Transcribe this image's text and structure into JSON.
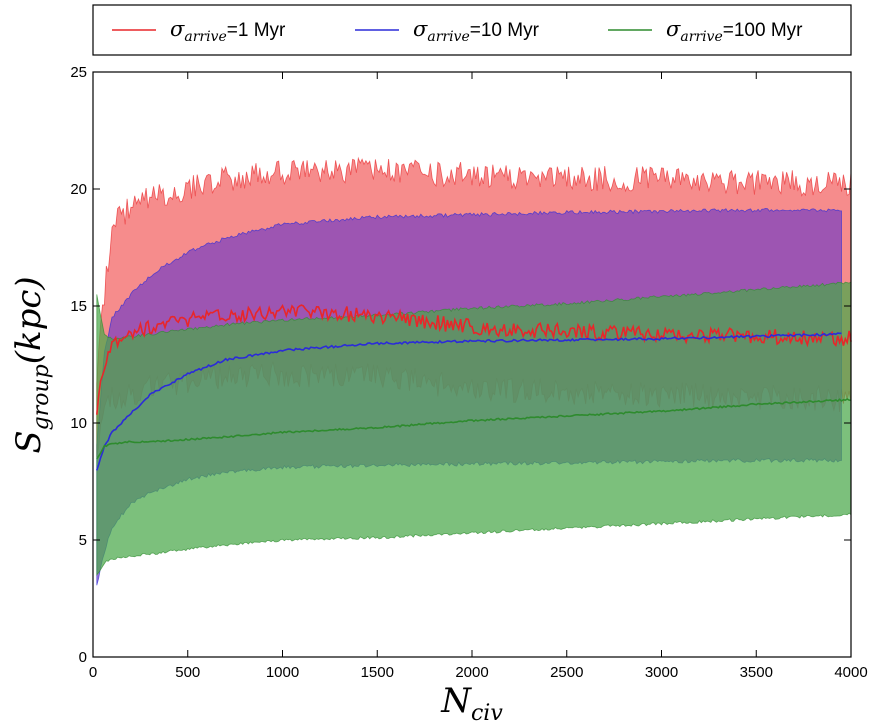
{
  "chart_data": {
    "type": "area",
    "xlabel": {
      "symbol": "N",
      "subscript": "civ"
    },
    "ylabel": {
      "symbol": "S",
      "subscript": "group",
      "suffix": "(kpc)"
    },
    "xlim": [
      0,
      4000
    ],
    "ylim": [
      0,
      25
    ],
    "x_ticks": [
      0,
      500,
      1000,
      1500,
      2000,
      2500,
      3000,
      3500,
      4000
    ],
    "y_ticks": [
      0,
      5,
      10,
      15,
      20,
      25
    ],
    "grid": false,
    "legend_position": "top",
    "legend": [
      {
        "symbol": "σ",
        "subscript": "arrive",
        "value": "=1 Myr",
        "color": "#e8262a"
      },
      {
        "symbol": "σ",
        "subscript": "arrive",
        "value": "=10 Myr",
        "color": "#2b2bd9"
      },
      {
        "symbol": "σ",
        "subscript": "arrive",
        "value": "=100 Myr",
        "color": "#2e8b2e"
      }
    ],
    "series": [
      {
        "color": "#e8262a",
        "fill_color": "#f26060",
        "x": [
          20,
          60,
          100,
          200,
          300,
          500,
          700,
          1000,
          1500,
          2000,
          2500,
          3000,
          3500,
          3950,
          4000
        ],
        "mean": [
          10.5,
          12.5,
          13.5,
          13.9,
          14.1,
          14.4,
          14.6,
          14.8,
          14.6,
          14.1,
          13.9,
          13.8,
          13.7,
          13.6,
          13.7
        ],
        "upper": [
          12.0,
          15.5,
          18.5,
          19.2,
          19.6,
          20.0,
          20.4,
          20.7,
          20.8,
          20.6,
          20.5,
          20.4,
          20.3,
          20.2,
          20.3
        ],
        "lower": [
          9.0,
          10.5,
          11.0,
          11.2,
          11.5,
          11.8,
          12.0,
          12.1,
          12.0,
          11.5,
          11.3,
          11.2,
          11.1,
          11.0,
          11.0
        ],
        "noise": 0.55
      },
      {
        "color": "#2b2bd9",
        "fill_color": "#7a40c0",
        "x": [
          20,
          60,
          100,
          200,
          300,
          500,
          700,
          1000,
          1500,
          2000,
          2500,
          3000,
          3500,
          3950
        ],
        "mean": [
          8.0,
          9.0,
          9.6,
          10.4,
          11.2,
          12.1,
          12.7,
          13.1,
          13.4,
          13.5,
          13.55,
          13.6,
          13.7,
          13.8
        ],
        "upper": [
          9.0,
          13.0,
          14.5,
          15.5,
          16.3,
          17.3,
          17.9,
          18.5,
          18.8,
          18.9,
          19.0,
          19.05,
          19.1,
          19.1
        ],
        "lower": [
          3.0,
          4.5,
          5.5,
          6.6,
          7.0,
          7.6,
          7.9,
          8.1,
          8.2,
          8.25,
          8.3,
          8.35,
          8.4,
          8.4
        ],
        "noise": 0.08
      },
      {
        "color": "#2e8b2e",
        "fill_color": "#4aa84a",
        "x": [
          20,
          60,
          100,
          200,
          300,
          500,
          700,
          1000,
          1500,
          2000,
          2500,
          3000,
          3500,
          4000
        ],
        "mean": [
          8.5,
          9.0,
          9.1,
          9.2,
          9.2,
          9.3,
          9.4,
          9.6,
          9.8,
          10.1,
          10.3,
          10.5,
          10.8,
          11.0
        ],
        "upper": [
          15.5,
          13.8,
          13.6,
          13.7,
          13.8,
          14.0,
          14.2,
          14.4,
          14.6,
          14.9,
          15.1,
          15.4,
          15.7,
          16.0
        ],
        "lower": [
          3.5,
          4.0,
          4.2,
          4.3,
          4.4,
          4.6,
          4.8,
          5.0,
          5.1,
          5.3,
          5.5,
          5.7,
          5.9,
          6.1
        ],
        "noise": 0.06
      }
    ]
  }
}
